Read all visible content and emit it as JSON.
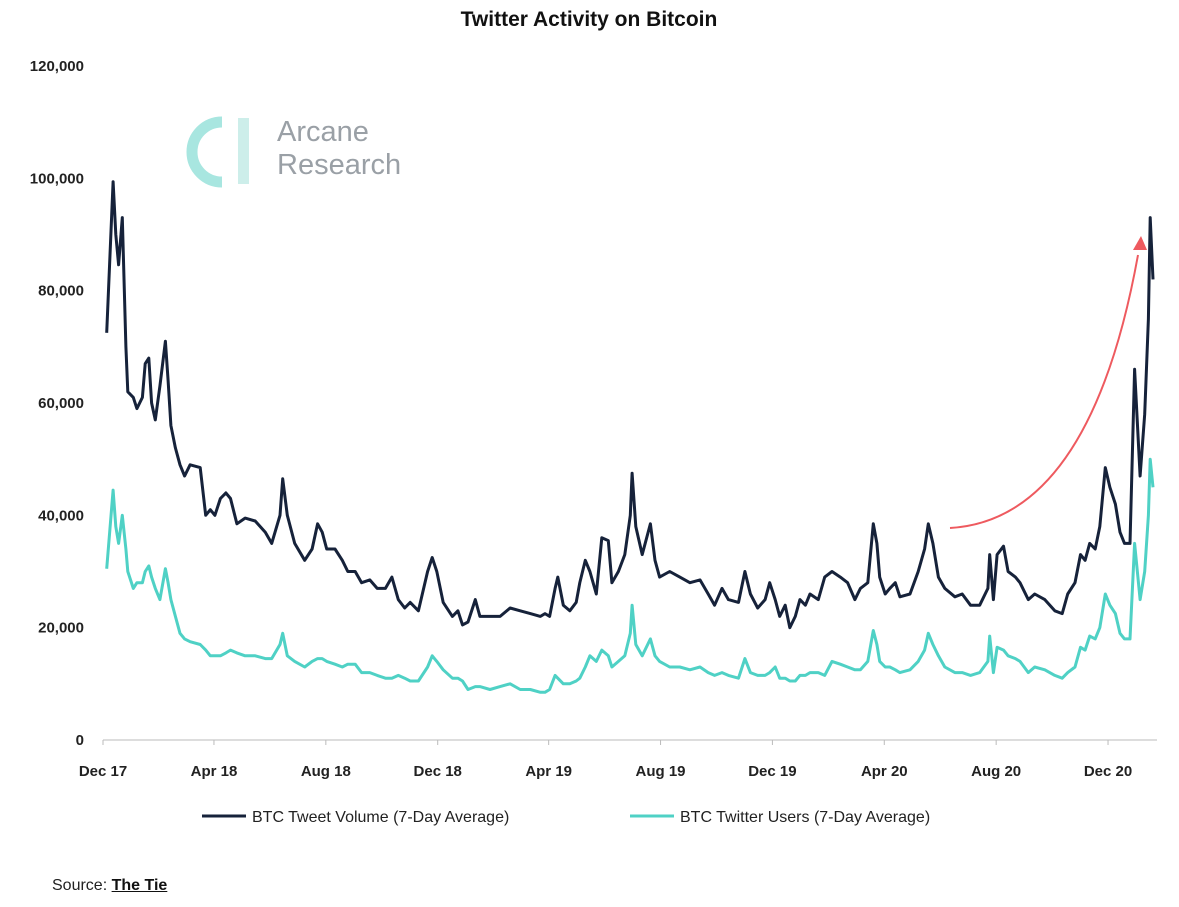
{
  "chart_data": {
    "type": "line",
    "title": "Twitter Activity on Bitcoin",
    "xlabel": "",
    "ylabel": "",
    "ylim": [
      0,
      120000
    ],
    "yticks": [
      "0",
      "20,000",
      "40,000",
      "60,000",
      "80,000",
      "100,000",
      "120,000"
    ],
    "ytick_values": [
      0,
      20000,
      40000,
      60000,
      80000,
      100000,
      120000
    ],
    "xticks": [
      "Dec 17",
      "Apr 18",
      "Aug 18",
      "Dec 18",
      "Apr 19",
      "Aug 19",
      "Dec 19",
      "Apr 20",
      "Aug 20",
      "Dec 20"
    ],
    "xtick_dates": [
      "2017-12-01",
      "2018-04-01",
      "2018-08-01",
      "2018-12-01",
      "2019-04-01",
      "2019-08-01",
      "2019-12-01",
      "2020-04-01",
      "2020-08-01",
      "2020-12-01"
    ],
    "xlim": [
      "2017-12-01",
      "2021-01-25"
    ],
    "grid": false,
    "legend_placement": "bottom",
    "x": [
      "2017-12-05",
      "2017-12-12",
      "2017-12-15",
      "2017-12-18",
      "2017-12-22",
      "2017-12-26",
      "2017-12-28",
      "2018-01-03",
      "2018-01-07",
      "2018-01-13",
      "2018-01-16",
      "2018-01-20",
      "2018-01-23",
      "2018-01-27",
      "2018-02-01",
      "2018-02-07",
      "2018-02-10",
      "2018-02-13",
      "2018-02-18",
      "2018-02-23",
      "2018-02-28",
      "2018-03-06",
      "2018-03-17",
      "2018-03-23",
      "2018-03-28",
      "2018-04-02",
      "2018-04-08",
      "2018-04-14",
      "2018-04-19",
      "2018-04-26",
      "2018-05-05",
      "2018-05-16",
      "2018-05-27",
      "2018-06-03",
      "2018-06-12",
      "2018-06-15",
      "2018-06-20",
      "2018-06-28",
      "2018-07-09",
      "2018-07-17",
      "2018-07-23",
      "2018-07-28",
      "2018-08-02",
      "2018-08-11",
      "2018-08-19",
      "2018-08-25",
      "2018-09-02",
      "2018-09-09",
      "2018-09-18",
      "2018-09-26",
      "2018-10-05",
      "2018-10-12",
      "2018-10-19",
      "2018-10-26",
      "2018-11-01",
      "2018-11-10",
      "2018-11-20",
      "2018-11-25",
      "2018-11-30",
      "2018-12-07",
      "2018-12-17",
      "2018-12-23",
      "2018-12-28",
      "2019-01-03",
      "2019-01-11",
      "2019-01-16",
      "2019-01-27",
      "2019-02-07",
      "2019-02-18",
      "2019-03-01",
      "2019-03-12",
      "2019-03-23",
      "2019-03-28",
      "2019-04-02",
      "2019-04-08",
      "2019-04-11",
      "2019-04-17",
      "2019-04-24",
      "2019-05-01",
      "2019-05-05",
      "2019-05-11",
      "2019-05-16",
      "2019-05-23",
      "2019-05-29",
      "2019-06-05",
      "2019-06-09",
      "2019-06-16",
      "2019-06-23",
      "2019-06-29",
      "2019-07-01",
      "2019-07-05",
      "2019-07-12",
      "2019-07-21",
      "2019-07-26",
      "2019-07-31",
      "2019-08-11",
      "2019-08-22",
      "2019-09-02",
      "2019-09-13",
      "2019-09-22",
      "2019-09-29",
      "2019-10-07",
      "2019-10-14",
      "2019-10-25",
      "2019-11-01",
      "2019-11-07",
      "2019-11-15",
      "2019-11-23",
      "2019-11-28",
      "2019-12-04",
      "2019-12-09",
      "2019-12-15",
      "2019-12-20",
      "2019-12-26",
      "2019-12-31",
      "2020-01-06",
      "2020-01-11",
      "2020-01-20",
      "2020-01-27",
      "2020-02-04",
      "2020-02-13",
      "2020-02-21",
      "2020-02-29",
      "2020-03-06",
      "2020-03-14",
      "2020-03-20",
      "2020-03-24",
      "2020-03-27",
      "2020-04-02",
      "2020-04-07",
      "2020-04-13",
      "2020-04-18",
      "2020-04-29",
      "2020-05-08",
      "2020-05-15",
      "2020-05-19",
      "2020-05-24",
      "2020-05-30",
      "2020-06-06",
      "2020-06-17",
      "2020-06-25",
      "2020-07-04",
      "2020-07-14",
      "2020-07-23",
      "2020-07-25",
      "2020-07-29",
      "2020-08-02",
      "2020-08-09",
      "2020-08-14",
      "2020-08-22",
      "2020-08-27",
      "2020-09-05",
      "2020-09-12",
      "2020-09-23",
      "2020-10-04",
      "2020-10-12",
      "2020-10-18",
      "2020-10-26",
      "2020-11-01",
      "2020-11-06",
      "2020-11-11",
      "2020-11-17",
      "2020-11-22",
      "2020-11-28",
      "2020-12-03",
      "2020-12-09",
      "2020-12-14",
      "2020-12-19",
      "2020-12-25",
      "2020-12-30",
      "2021-01-05",
      "2021-01-10",
      "2021-01-14",
      "2021-01-16",
      "2021-01-19"
    ],
    "series": [
      {
        "name": "BTC Tweet Volume (7-Day Average)",
        "color": "#16223a",
        "values": [
          72500,
          99400,
          90000,
          84600,
          93000,
          70000,
          62000,
          61000,
          59000,
          61000,
          67000,
          68000,
          60000,
          57000,
          63000,
          71000,
          64000,
          56000,
          52000,
          49000,
          47000,
          49000,
          48500,
          40000,
          41000,
          40000,
          43000,
          44000,
          43000,
          38500,
          39500,
          39000,
          37000,
          35000,
          40000,
          46500,
          40000,
          35000,
          32000,
          34000,
          38500,
          37000,
          34000,
          34000,
          32000,
          30000,
          30000,
          28000,
          28500,
          27000,
          27000,
          29000,
          25000,
          23500,
          24500,
          23000,
          30000,
          32500,
          30000,
          24500,
          22000,
          23000,
          20500,
          21000,
          25000,
          22000,
          22000,
          22000,
          23500,
          23000,
          22500,
          22000,
          22500,
          22000,
          27000,
          29000,
          24000,
          23000,
          24500,
          28000,
          32000,
          30000,
          26000,
          36000,
          35500,
          28000,
          30000,
          33000,
          40000,
          47500,
          38000,
          33000,
          38500,
          32000,
          29000,
          30000,
          29000,
          28000,
          28500,
          26000,
          24000,
          27000,
          25000,
          24500,
          30000,
          26000,
          23500,
          25000,
          28000,
          25000,
          22000,
          24000,
          20000,
          22000,
          25000,
          24000,
          26000,
          25000,
          29000,
          30000,
          29000,
          28000,
          25000,
          27000,
          28000,
          38500,
          35000,
          29000,
          26000,
          27000,
          28000,
          25500,
          26000,
          30000,
          34000,
          38500,
          35000,
          29000,
          27000,
          25500,
          26000,
          24000,
          24000,
          27000,
          33000,
          25000,
          33000,
          34500,
          30000,
          29000,
          28000,
          25000,
          26000,
          25000,
          23000,
          22500,
          26000,
          28000,
          33000,
          32000,
          35000,
          34000,
          38000,
          48500,
          45000,
          42000,
          37000,
          35000,
          35000,
          66000,
          47000,
          58000,
          75000,
          93000,
          82000
        ]
      },
      {
        "name": "BTC Twitter Users (7-Day Average)",
        "color": "#4fd1c5",
        "values": [
          30500,
          44500,
          38000,
          35000,
          40000,
          34000,
          30000,
          27000,
          28000,
          28000,
          30000,
          31000,
          29000,
          27000,
          25000,
          30500,
          28000,
          25000,
          22000,
          19000,
          18000,
          17500,
          17000,
          16000,
          15000,
          15000,
          15000,
          15500,
          16000,
          15500,
          15000,
          15000,
          14500,
          14500,
          17000,
          19000,
          15000,
          14000,
          13000,
          14000,
          14500,
          14500,
          14000,
          13500,
          13000,
          13500,
          13500,
          12000,
          12000,
          11500,
          11000,
          11000,
          11500,
          11000,
          10500,
          10500,
          13000,
          15000,
          14000,
          12500,
          11000,
          11000,
          10500,
          9000,
          9500,
          9500,
          9000,
          9500,
          10000,
          9000,
          9000,
          8500,
          8500,
          9000,
          11500,
          11000,
          10000,
          10000,
          10500,
          11000,
          13000,
          15000,
          14000,
          16000,
          15000,
          13000,
          14000,
          15000,
          19000,
          24000,
          17000,
          15000,
          18000,
          15000,
          14000,
          13000,
          13000,
          12500,
          13000,
          12000,
          11500,
          12000,
          11500,
          11000,
          14500,
          12000,
          11500,
          11500,
          12000,
          13000,
          11000,
          11000,
          10500,
          10500,
          11500,
          11500,
          12000,
          12000,
          11500,
          14000,
          13500,
          13000,
          12500,
          12500,
          14000,
          19500,
          17000,
          14000,
          13000,
          13000,
          12500,
          12000,
          12500,
          14000,
          16000,
          19000,
          17000,
          15000,
          13000,
          12000,
          12000,
          11500,
          12000,
          14000,
          18500,
          12000,
          16500,
          16000,
          15000,
          14500,
          14000,
          12000,
          13000,
          12500,
          11500,
          11000,
          12000,
          13000,
          16500,
          16000,
          18500,
          18000,
          20000,
          26000,
          24000,
          22500,
          19000,
          18000,
          18000,
          35000,
          25000,
          30000,
          40000,
          50000,
          45000
        ]
      }
    ]
  },
  "logo": {
    "line1": "Arcane",
    "line2": "Research",
    "color": "#a8e6e0"
  },
  "annotation": {
    "arrow_color": "#ee5a5f"
  },
  "source": {
    "label": "Source:",
    "name": "The Tie"
  }
}
